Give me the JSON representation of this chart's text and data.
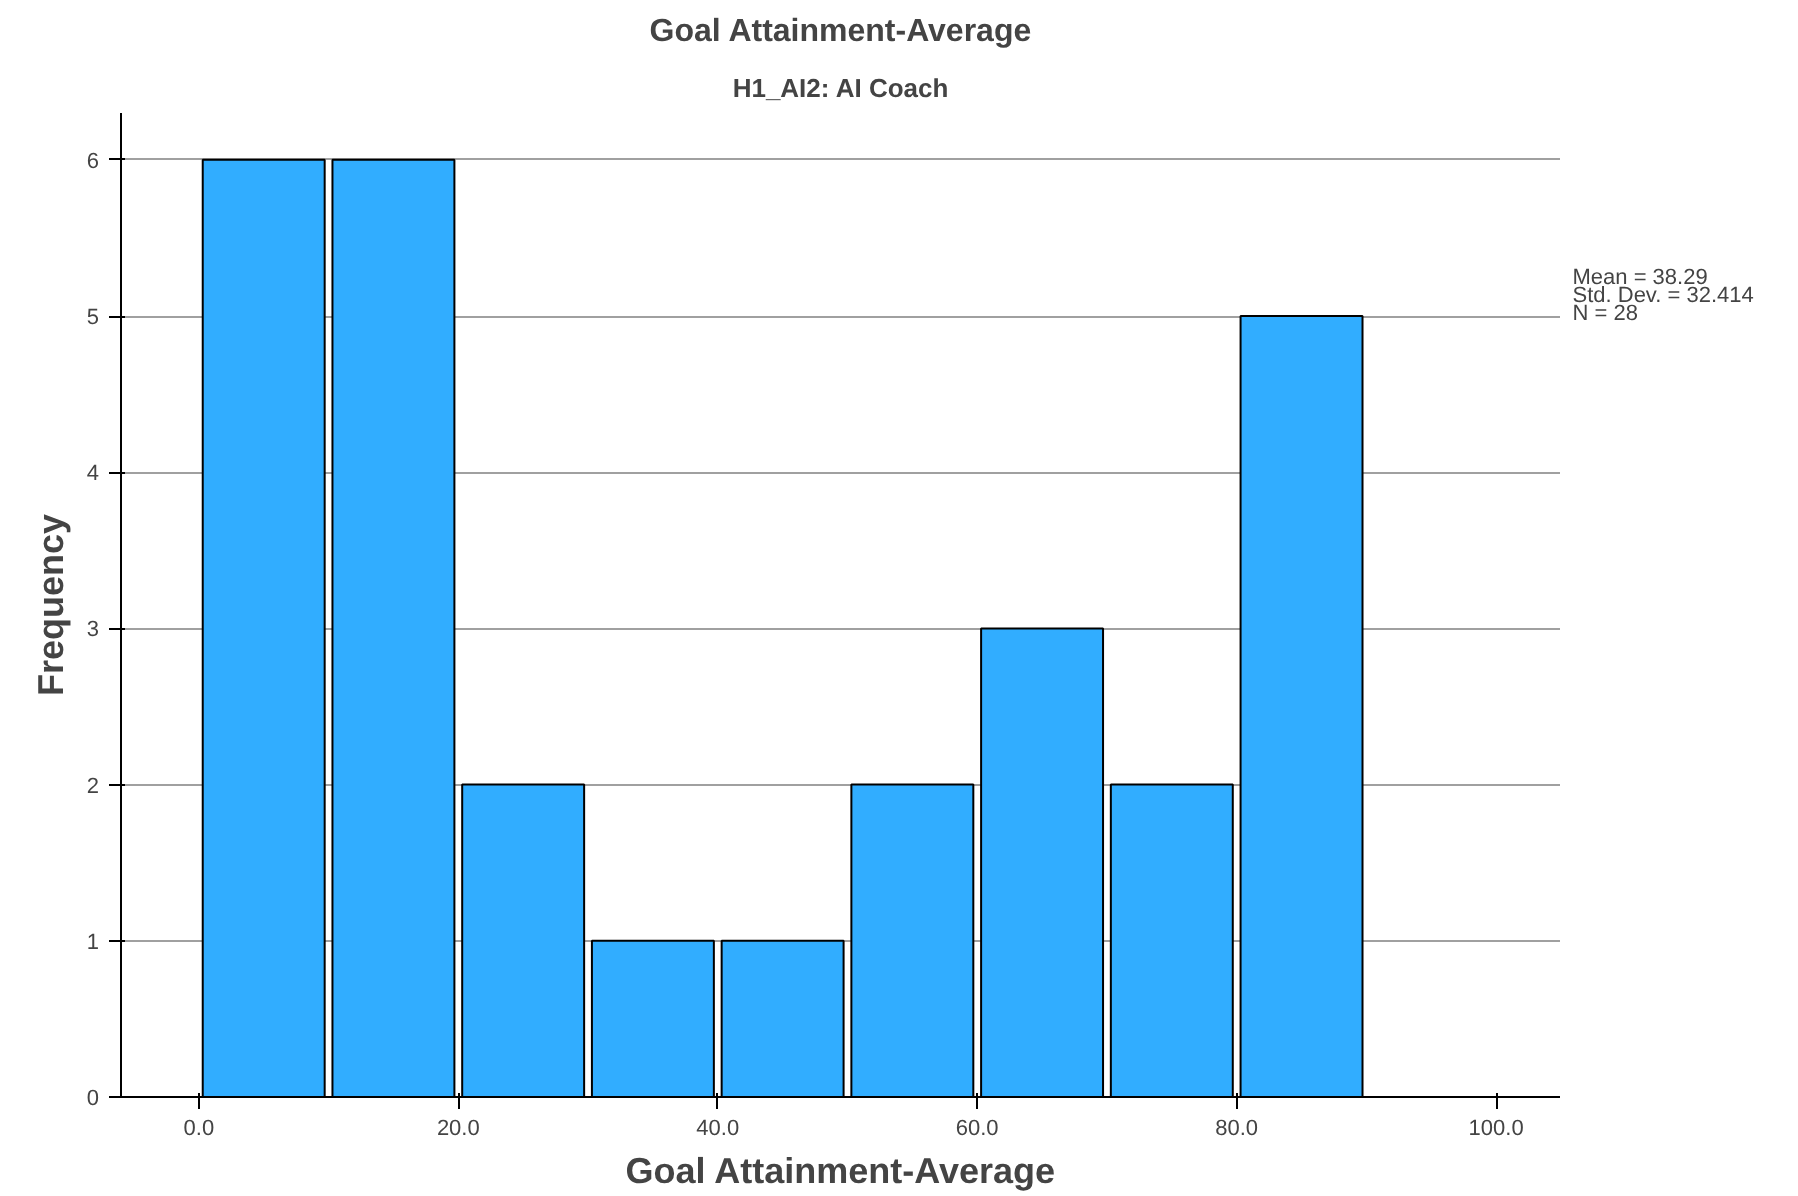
{
  "chart_data": {
    "type": "histogram",
    "title": "Goal Attainment-Average",
    "subtitle": "H1_AI2: AI Coach",
    "xlabel": "Goal Attainment-Average",
    "ylabel": "Frequency",
    "bins": [
      0,
      10,
      20,
      30,
      40,
      50,
      60,
      70,
      80,
      90
    ],
    "values": [
      6,
      6,
      2,
      1,
      1,
      2,
      3,
      2,
      5
    ],
    "color": "#31adff",
    "xlim": [
      -6,
      105
    ],
    "ylim": [
      0,
      6.3
    ],
    "xticks": [
      {
        "value": 0,
        "label": "0.0"
      },
      {
        "value": 20,
        "label": "20.0"
      },
      {
        "value": 40,
        "label": "40.0"
      },
      {
        "value": 60,
        "label": "60.0"
      },
      {
        "value": 80,
        "label": "80.0"
      },
      {
        "value": 100,
        "label": "100.0"
      }
    ],
    "yticks": [
      0,
      1,
      2,
      3,
      4,
      5,
      6
    ],
    "grid": "y",
    "annotations": [
      "Mean = 38.29",
      "Std. Dev. = 32.414",
      "N = 28"
    ]
  }
}
